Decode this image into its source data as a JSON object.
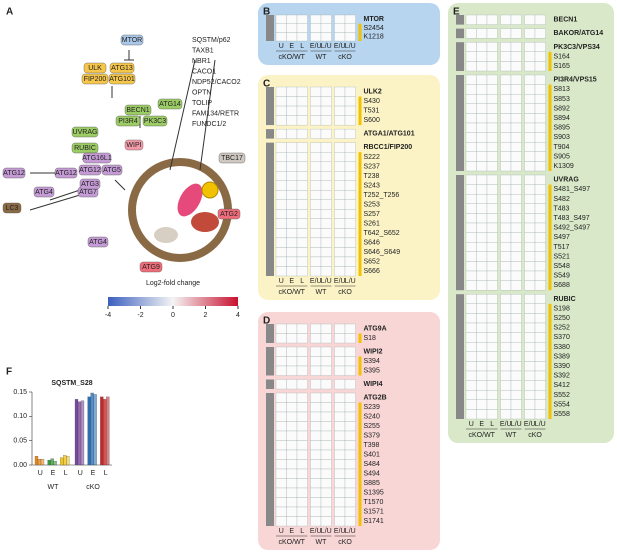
{
  "panel_labels": [
    "A",
    "B",
    "C",
    "D",
    "E",
    "F"
  ],
  "pathway": {
    "nodes": [
      "MTOR",
      "ULK",
      "ATG13",
      "FIP200",
      "ATG101",
      "BECN1",
      "ATG14",
      "PI3R4",
      "PK3C3",
      "UVRAG",
      "RUBIC",
      "ATG12",
      "ATG12",
      "ATG4",
      "LC3",
      "ATG7",
      "ATG16L1",
      "ATG12",
      "ATG5",
      "ATG3",
      "WIPI",
      "ATG4",
      "TBC17",
      "ATG2",
      "ATG9"
    ],
    "receptors": [
      {
        "label": "SQSTM/p62",
        "color": "#333"
      },
      {
        "label": "TAXB1",
        "color": "#333"
      },
      {
        "label": "NBR1",
        "color": "#333"
      },
      {
        "label": "CACO1",
        "color": "#333"
      },
      {
        "label": "NDP52/CACO2",
        "color": "#999"
      },
      {
        "label": "OPTN",
        "color": "#333"
      },
      {
        "label": "TOLIP",
        "color": "#333"
      },
      {
        "label": "FAM134/RETR",
        "color": "#333"
      },
      {
        "label": "FUNDC1/2",
        "color": "#333"
      }
    ]
  },
  "colorbar": {
    "title": "Log2-fold change",
    "lim": [
      -4,
      4
    ],
    "ticks": [
      -4,
      -2,
      0,
      2,
      4
    ]
  },
  "heatmaps": [
    {
      "label": "B",
      "color": "#b7d5ee",
      "columns": [
        "U",
        "E",
        "L",
        "E/U",
        "L/U",
        "E/U",
        "L/U"
      ],
      "column_groups": [
        "cKO/WT",
        "WT",
        "cKO"
      ],
      "blocks": [
        {
          "protein": "MTOR",
          "sites": [
            "S2454",
            "K1218"
          ]
        }
      ]
    },
    {
      "label": "C",
      "color": "#fbf3c6",
      "columns": [
        "U",
        "E",
        "L",
        "E/U",
        "L/U",
        "E/U",
        "L/U"
      ],
      "column_groups": [
        "cKO/WT",
        "WT",
        "cKO"
      ],
      "blocks": [
        {
          "protein": "ULK2",
          "sites": [
            "S430",
            "T531",
            "S600"
          ]
        },
        {
          "protein": "ATGA1/ATG101",
          "sites": []
        },
        {
          "protein": "RBCC1/FIP200",
          "sites": [
            "S222",
            "S237",
            "T238",
            "S243",
            "T252_T256",
            "S253",
            "S257",
            "S261",
            "T642_S652",
            "S646",
            "S646_S649",
            "S652",
            "S666"
          ]
        }
      ]
    },
    {
      "label": "D",
      "color": "#f8d6d6",
      "columns": [
        "U",
        "E",
        "L",
        "E/U",
        "L/U",
        "E/U",
        "L/U"
      ],
      "column_groups": [
        "cKO/WT",
        "WT",
        "cKO"
      ],
      "blocks": [
        {
          "protein": "ATG9A",
          "sites": [
            "S18"
          ]
        },
        {
          "protein": "WIPI2",
          "sites": [
            "S394",
            "S395"
          ]
        },
        {
          "protein": "WIPI4",
          "sites": []
        },
        {
          "protein": "ATG2B",
          "sites": [
            "S239",
            "S240",
            "S255",
            "S379",
            "T398",
            "S401",
            "S484",
            "S494",
            "S885",
            "S1395",
            "T1570",
            "S1571",
            "S1741"
          ]
        }
      ]
    },
    {
      "label": "E",
      "color": "#d9e8c8",
      "columns": [
        "U",
        "E",
        "L",
        "E/U",
        "L/U",
        "E/U",
        "L/U"
      ],
      "column_groups": [
        "cKO/WT",
        "WT",
        "cKO"
      ],
      "blocks": [
        {
          "protein": "BECN1",
          "sites": []
        },
        {
          "protein": "BAKOR/ATG14",
          "sites": []
        },
        {
          "protein": "PK3C3/VPS34",
          "sites": [
            "S164",
            "S165"
          ]
        },
        {
          "protein": "PI3R4/VPS15",
          "sites": [
            "S813",
            "S853",
            "S892",
            "S894",
            "S895",
            "S903",
            "T904",
            "S905",
            "K1309"
          ]
        },
        {
          "protein": "UVRAG",
          "sites": [
            "S481_S497",
            "S482",
            "T483",
            "T483_S497",
            "S492_S497",
            "S497",
            "T517",
            "S521",
            "S548",
            "S549",
            "S688"
          ]
        },
        {
          "protein": "RUBIC",
          "sites": [
            "S198",
            "S250",
            "S252",
            "S370",
            "S380",
            "S389",
            "S390",
            "S392",
            "S412",
            "S552",
            "S554",
            "S558"
          ]
        }
      ]
    }
  ],
  "chart_data": {
    "type": "bar",
    "title": "SQSTM_S28",
    "categories": [
      "U",
      "E",
      "L",
      "U",
      "E",
      "L"
    ],
    "groups": [
      "WT",
      "cKO"
    ],
    "values": [
      [
        0.018,
        0.012,
        0.012
      ],
      [
        0.01,
        0.013,
        0.008
      ],
      [
        0.015,
        0.02,
        0.018
      ],
      [
        0.135,
        0.13,
        0.132
      ],
      [
        0.14,
        0.148,
        0.145
      ],
      [
        0.14,
        0.135,
        0.14
      ]
    ],
    "colors": [
      "#e8891d",
      "#3a9a3e",
      "#f0c419",
      "#7a4a9f",
      "#2c6fb5",
      "#c62828"
    ],
    "ylim": [
      0,
      0.15
    ],
    "yticks": [
      {
        "value": 0,
        "label": "0.00"
      },
      0.05,
      {
        "value": 0.1,
        "label": "0.10"
      },
      0.15
    ]
  }
}
